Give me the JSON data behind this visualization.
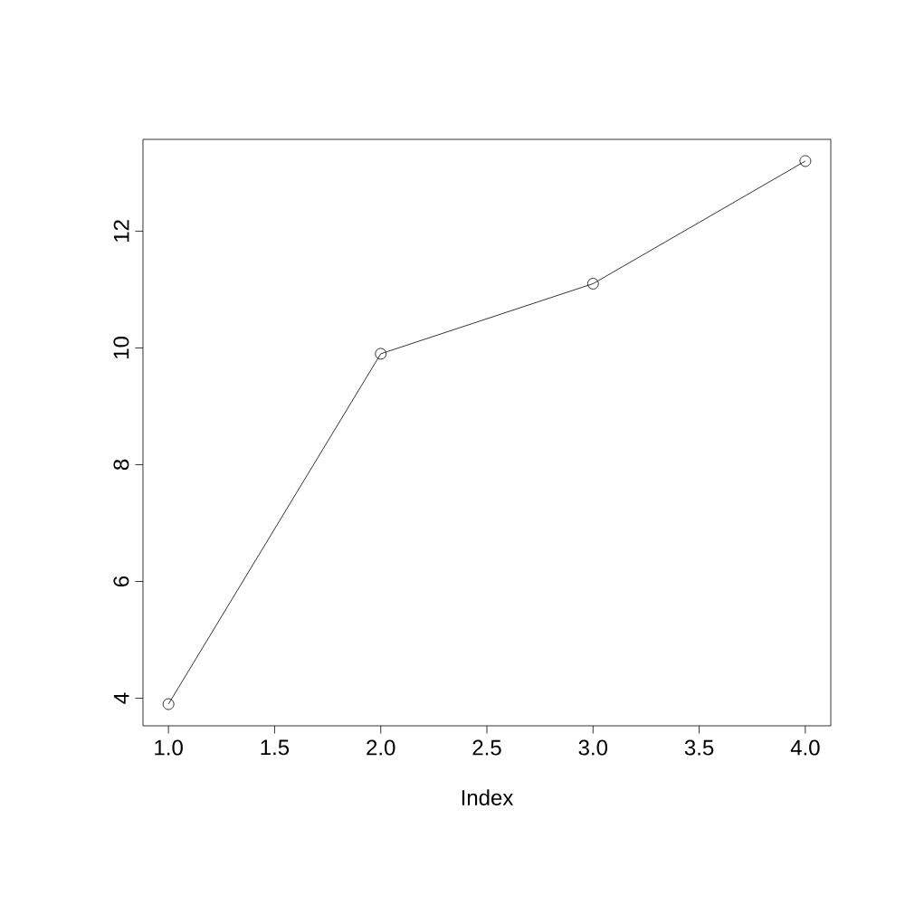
{
  "chart_data": {
    "type": "line",
    "xlabel": "Index",
    "x": [
      1,
      2,
      3,
      4
    ],
    "values": [
      3.9,
      9.9,
      11.1,
      13.2
    ],
    "color": "#000000",
    "xlim": [
      0.88,
      4.12
    ],
    "ylim": [
      3.528,
      13.572
    ],
    "xticks": [
      {
        "value": 1,
        "label": "1.0"
      },
      {
        "value": 1.5,
        "label": "1.5"
      },
      {
        "value": 2,
        "label": "2.0"
      },
      {
        "value": 2.5,
        "label": "2.5"
      },
      {
        "value": 3,
        "label": "3.0"
      },
      {
        "value": 3.5,
        "label": "3.5"
      },
      {
        "value": 4,
        "label": "4.0"
      }
    ],
    "yticks": [
      4,
      6,
      8,
      10,
      12
    ],
    "marker": "circle",
    "line_style": "solid",
    "grid": false
  }
}
